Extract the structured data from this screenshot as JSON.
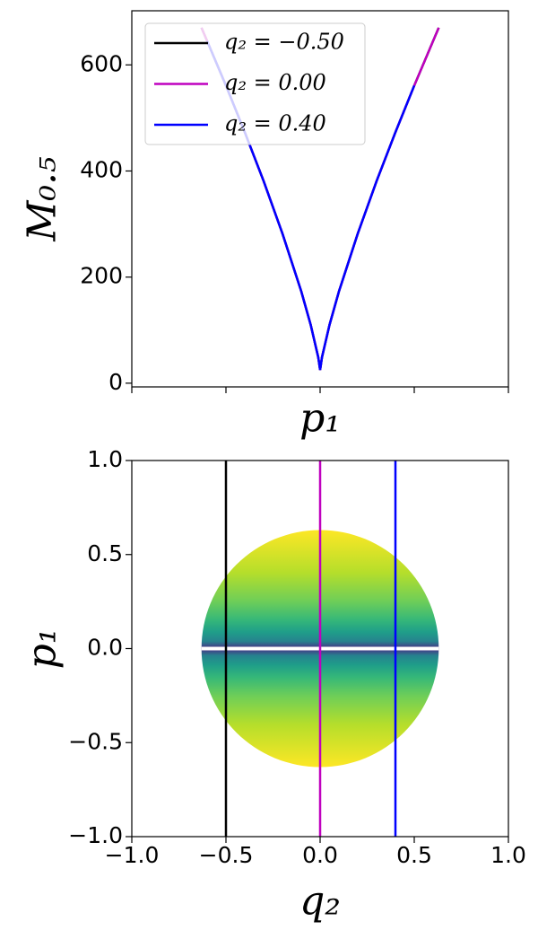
{
  "chart_data": [
    {
      "type": "line",
      "ylabel": "M₀.₅",
      "xlabel": "p₁",
      "x": [
        -0.63,
        -0.6,
        -0.5,
        -0.4,
        -0.3,
        -0.2,
        -0.1,
        -0.05,
        -0.01,
        0,
        0.01,
        0.05,
        0.1,
        0.2,
        0.3,
        0.4,
        0.5,
        0.6,
        0.63
      ],
      "series": [
        {
          "name": "q₂ = −0.50",
          "color": "#000000",
          "values": [
            670,
            645,
            561,
            473,
            381,
            282,
            173,
            110,
            49,
            25,
            49,
            110,
            173,
            282,
            381,
            473,
            561,
            645,
            670
          ]
        },
        {
          "name": "q₂ = 0.00",
          "color": "#bf00bf",
          "values": [
            670,
            645,
            561,
            473,
            381,
            282,
            173,
            110,
            49,
            25,
            49,
            110,
            173,
            282,
            381,
            473,
            561,
            645,
            670
          ]
        },
        {
          "name": "q₂ = 0.40",
          "color": "#0000ff",
          "values": [
            null,
            645,
            561,
            473,
            381,
            282,
            173,
            110,
            49,
            25,
            49,
            110,
            173,
            282,
            381,
            473,
            561,
            null,
            null
          ]
        }
      ],
      "xlim": [
        -1,
        1
      ],
      "xticks": [
        -1,
        -0.5,
        0,
        0.5,
        1
      ],
      "ylim": [
        -7,
        702
      ],
      "yticks": [
        0,
        200,
        400,
        600
      ],
      "legend": "upper-left"
    },
    {
      "type": "disk",
      "ylabel": "p₁",
      "xlabel": "q₂",
      "disk_radius": 0.63,
      "lines": [
        {
          "x": -0.5,
          "color": "#000000"
        },
        {
          "x": 0,
          "color": "#bf00bf"
        },
        {
          "x": 0.4,
          "color": "#0000ff"
        }
      ],
      "xlim": [
        -1,
        1
      ],
      "xticks": [
        {
          "value": -1,
          "label": "−1.0"
        },
        {
          "value": -0.5,
          "label": "−0.5"
        },
        {
          "value": 0,
          "label": "0.0"
        },
        {
          "value": 0.5,
          "label": "0.5"
        },
        {
          "value": 1,
          "label": "1.0"
        }
      ],
      "ylim": [
        -1,
        1
      ],
      "yticks": [
        {
          "value": -1,
          "label": "−1.0"
        },
        {
          "value": -0.5,
          "label": "−0.5"
        },
        {
          "value": 0,
          "label": "0.0"
        },
        {
          "value": 0.5,
          "label": "0.5"
        },
        {
          "value": 1,
          "label": "1.0"
        }
      ]
    }
  ]
}
